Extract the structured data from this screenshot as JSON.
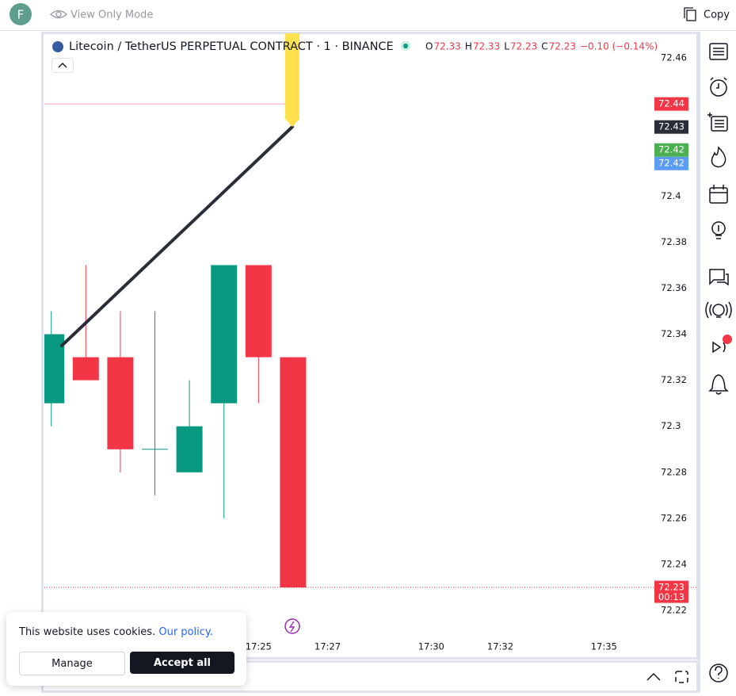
{
  "header": {
    "avatar": "F",
    "mode": "View Only Mode",
    "copy": "Copy"
  },
  "legend": {
    "symbol": "Litecoin / TetherUS PERPETUAL CONTRACT · 1 · BINANCE",
    "ohlc": [
      {
        "label": "O",
        "value": 72.33
      },
      {
        "label": "H",
        "value": 72.33
      },
      {
        "label": "L",
        "value": 72.23
      },
      {
        "label": "C",
        "value": 72.23
      }
    ],
    "change": "−0.10 (−0.14%)"
  },
  "cookie": {
    "text": "This website uses cookies.",
    "link": "Our policy.",
    "manage": "Manage",
    "accept": "Accept all"
  },
  "chart_data": {
    "type": "candlestick",
    "open": [
      72.31,
      72.33,
      72.33,
      72.29,
      72.28,
      72.31,
      72.37,
      72.33
    ],
    "high": [
      72.35,
      72.37,
      72.35,
      72.35,
      72.32,
      72.37,
      72.37,
      72.33
    ],
    "low": [
      72.3,
      72.32,
      72.28,
      72.27,
      72.28,
      72.26,
      72.31,
      72.23
    ],
    "close": [
      72.34,
      72.32,
      72.29,
      72.29,
      72.3,
      72.37,
      72.33,
      72.23
    ],
    "up_color": "#089981",
    "down_color": "#f23645",
    "xlim": [
      -0.2,
      18.7
    ],
    "xticks": [
      {
        "value": 6,
        "label": "17:25"
      },
      {
        "value": 8,
        "label": "17:27"
      },
      {
        "value": 11,
        "label": "17:30"
      },
      {
        "value": 13,
        "label": "17:32"
      },
      {
        "value": 16,
        "label": "17:35"
      }
    ],
    "ylim": [
      72.2097,
      72.4707
    ],
    "yticks": [
      72.46,
      72.4,
      72.38,
      72.36,
      72.34,
      72.32,
      72.3,
      72.28,
      72.26,
      72.24,
      72.22
    ],
    "price_labels": [
      {
        "value": 72.44,
        "color": "#f23645"
      },
      {
        "value": 72.43,
        "color": "#2a2e39"
      },
      {
        "value": 72.42,
        "color": "#4caf50"
      },
      {
        "value": 72.42,
        "color": "#5b9cf6"
      },
      {
        "value": 72.23,
        "color": "#f23645",
        "countdown": "00:13"
      }
    ],
    "lines": [
      {
        "value": 72.44,
        "color": "#f7a8ae",
        "style": "solid"
      },
      {
        "value": 72.23,
        "color": "#f23645",
        "style": "dotted"
      }
    ]
  }
}
